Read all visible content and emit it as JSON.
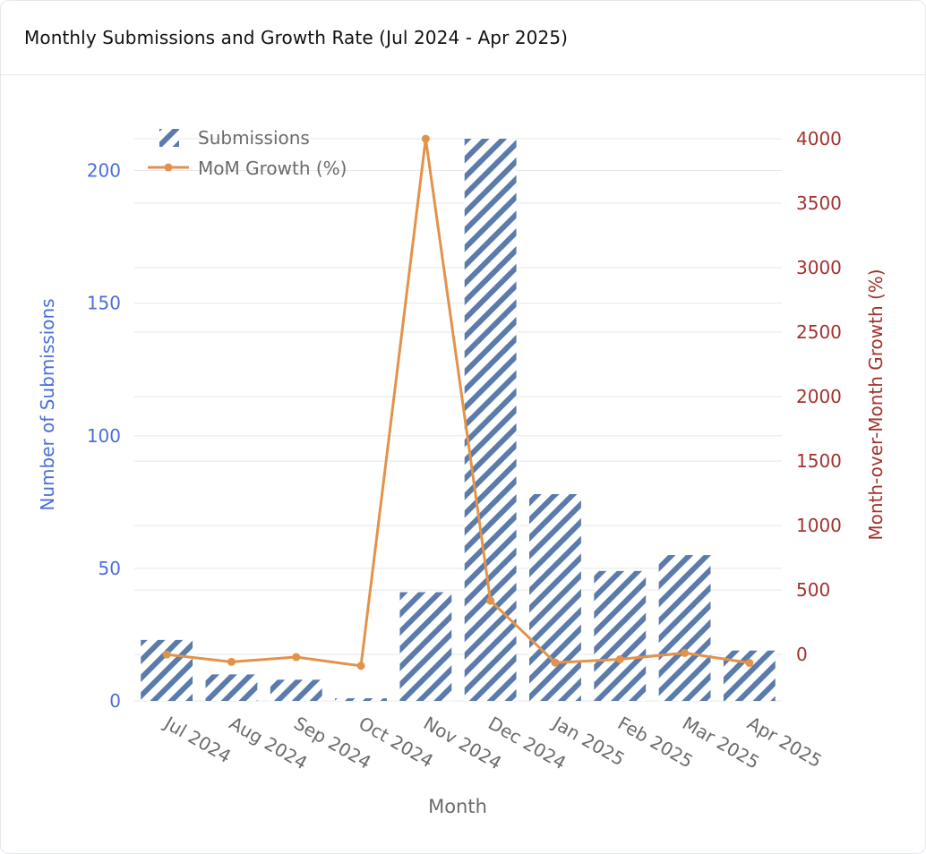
{
  "header": {
    "title": "Monthly Submissions and Growth Rate (Jul 2024 - Apr 2025)"
  },
  "colors": {
    "bar": "#5a7bab",
    "line": "#e3924a",
    "left_axis": "#4a6fd8",
    "right_axis": "#a3322e",
    "tick": "#6b6b6b",
    "grid": "#e5e7eb"
  },
  "chart_data": {
    "type": "bar",
    "categories": [
      "Jul 2024",
      "Aug 2024",
      "Sep 2024",
      "Oct 2024",
      "Nov 2024",
      "Dec 2024",
      "Jan 2025",
      "Feb 2025",
      "Mar 2025",
      "Apr 2025"
    ],
    "series": [
      {
        "name": "Submissions",
        "type": "bar",
        "axis": "left",
        "pattern": "diagonal-hatch",
        "values": [
          23,
          10,
          8,
          1,
          41,
          212,
          78,
          49,
          55,
          19
        ]
      },
      {
        "name": "MoM Growth (%)",
        "type": "line",
        "axis": "right",
        "values": [
          0,
          -57,
          -20,
          -88,
          4000,
          417,
          -63,
          -37,
          12,
          -65
        ]
      }
    ],
    "xlabel": "Month",
    "ylabel": "Number of Submissions",
    "y2label": "Month-over-Month Growth (%)",
    "ylim": [
      0,
      212
    ],
    "y2lim": [
      -360,
      4000
    ],
    "yticks": [
      0,
      50,
      100,
      150,
      200
    ],
    "y2ticks": [
      0,
      500,
      1000,
      1500,
      2000,
      2500,
      3000,
      3500,
      4000
    ],
    "legend_position": "top-left",
    "grid": true
  }
}
